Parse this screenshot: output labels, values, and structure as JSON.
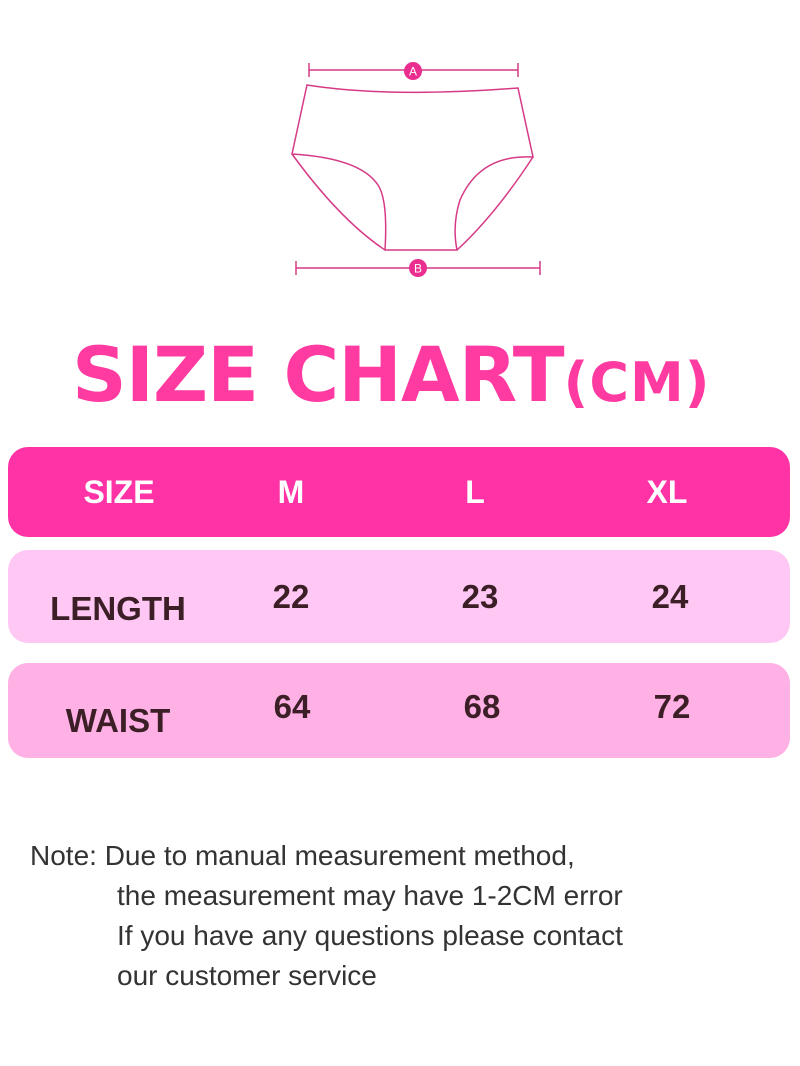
{
  "diagram": {
    "markers": [
      "A",
      "B"
    ],
    "accent": "#e0338f"
  },
  "title": {
    "main": "SIZE CHART",
    "unit": "(CM)",
    "color": "#ff3aa0"
  },
  "table": {
    "header": {
      "label": "SIZE",
      "sizes": [
        "M",
        "L",
        "XL"
      ],
      "color": "#ff33a6"
    },
    "rows": [
      {
        "label": "LENGTH",
        "values": [
          "22",
          "23",
          "24"
        ],
        "color": "#ffc8f4"
      },
      {
        "label": "WAIST",
        "values": [
          "64",
          "68",
          "72"
        ],
        "color": "#ffb0e4"
      }
    ]
  },
  "note": {
    "prefix": "Note: ",
    "lines": [
      "Due to manual measurement method,",
      "the measurement may have 1-2CM error",
      "If you have any questions please contact",
      "our customer service"
    ]
  }
}
